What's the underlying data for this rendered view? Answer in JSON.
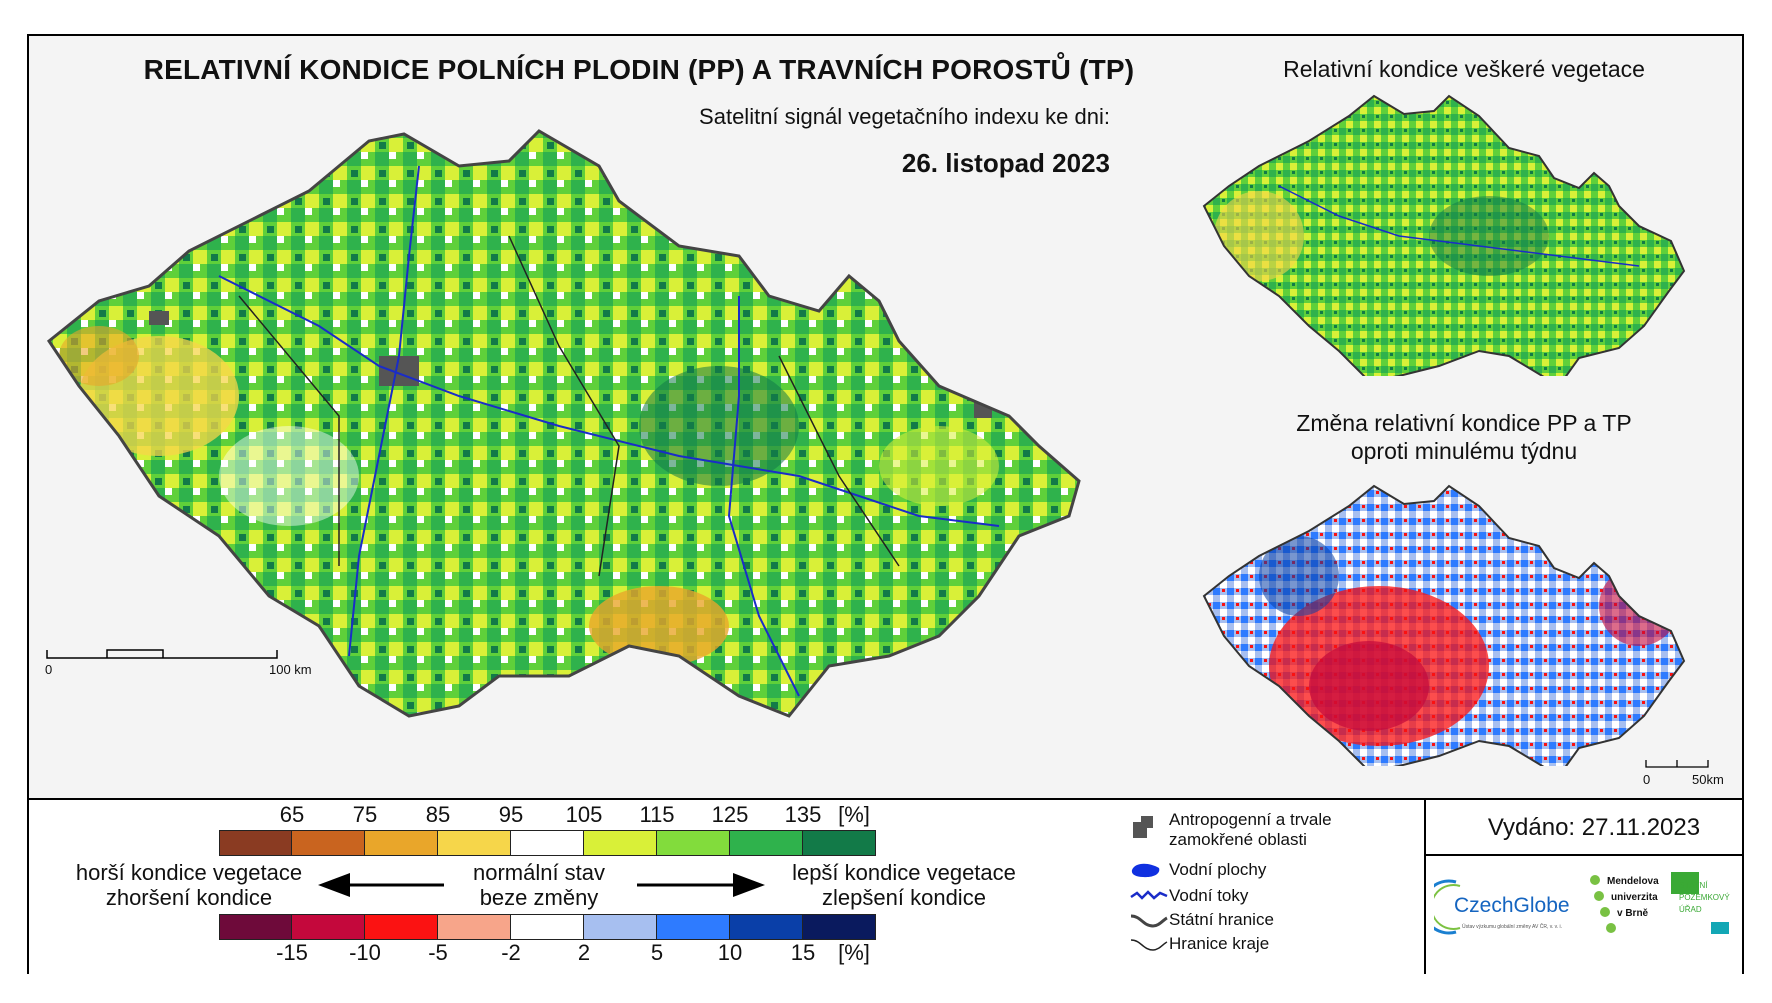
{
  "header": {
    "title": "RELATIVNÍ KONDICE POLNÍCH PLODIN (PP) A TRAVNÍCH POROSTŮ (TP)",
    "subtitle": "Satelitní signál vegetačního indexu ke dni:",
    "date": "26. listopad 2023"
  },
  "side_maps": {
    "top_title": "Relativní kondice veškeré vegetace",
    "bottom_title_line1": "Změna relativní kondice PP a TP",
    "bottom_title_line2": "oproti minulému týdnu"
  },
  "scale_main": {
    "start": "0",
    "end": "100 km"
  },
  "scale_small": {
    "start": "0",
    "end": "50km"
  },
  "legend_condition": {
    "ticks": [
      "65",
      "75",
      "85",
      "95",
      "105",
      "115",
      "125",
      "135",
      "[%]"
    ],
    "colors": [
      "#8a3b22",
      "#c9641f",
      "#e9a62a",
      "#f6d64a",
      "#ffffff",
      "#d9f038",
      "#82dc3c",
      "#2fb24c",
      "#127a48"
    ]
  },
  "legend_change": {
    "ticks": [
      "-15",
      "-10",
      "-5",
      "-2",
      "2",
      "5",
      "10",
      "15",
      "[%]"
    ],
    "colors": [
      "#6e0a3a",
      "#c4083c",
      "#fb1212",
      "#f7a58a",
      "#ffffff",
      "#a7bff0",
      "#2e7bff",
      "#0a3fa8",
      "#0a1a5e"
    ]
  },
  "captions": {
    "worse_line1": "horší kondice vegetace",
    "worse_line2": "zhoršení kondice",
    "normal_line1": "normální stav",
    "normal_line2": "beze změny",
    "better_line1": "lepší kondice vegetace",
    "better_line2": "zlepšení kondice"
  },
  "key": {
    "anthropogenic_line1": "Antropogenní a trvale",
    "anthropogenic_line2": "zamokřené oblasti",
    "water_areas": "Vodní plochy",
    "water_streams": "Vodní toky",
    "state_border": "Státní hranice",
    "region_border": "Hranice kraje"
  },
  "issued": "Vydáno: 27.11.2023",
  "logos": {
    "czechglobe": "CzechGlobe",
    "czechglobe_sub": "Ústav výzkumu globální změny AV ČR, v. v. i.",
    "mendel_line1": "Mendelova",
    "mendel_line2": "univerzita",
    "mendel_line3": "v Brně",
    "spu_line1": "STÁTNÍ",
    "spu_line2": "POZEMKOVÝ",
    "spu_line3": "ÚŘAD"
  }
}
